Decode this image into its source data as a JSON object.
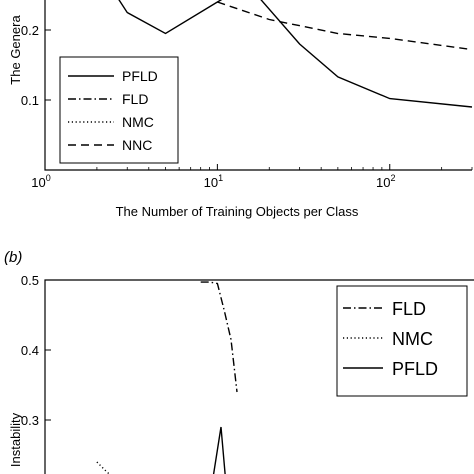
{
  "chart_data": [
    {
      "panel": "",
      "type": "line",
      "xscale": "log",
      "xlim": [
        1,
        300
      ],
      "ylim": [
        0.0,
        0.3
      ],
      "xlabel": "The Number of Training Objects per Class",
      "ylabel": "The Genera",
      "xticks": [
        1,
        10,
        100
      ],
      "xtick_labels": [
        {
          "base": "10",
          "exp": "0"
        },
        {
          "base": "10",
          "exp": "1"
        },
        {
          "base": "10",
          "exp": "2"
        }
      ],
      "yticks": [
        0.1,
        0.2
      ],
      "ytick_labels": [
        "0.1",
        "0.2"
      ],
      "legend": {
        "position": "lower-left"
      },
      "series": [
        {
          "name": "PFLD",
          "style": "solid",
          "x": [
            2.5,
            3,
            5,
            10,
            15,
            30,
            50,
            100,
            300
          ],
          "y": [
            0.255,
            0.225,
            0.195,
            0.24,
            0.265,
            0.18,
            0.133,
            0.102,
            0.09
          ]
        },
        {
          "name": "FLD",
          "style": "dashdot",
          "x": [],
          "y": []
        },
        {
          "name": "NMC",
          "style": "dotted",
          "x": [],
          "y": []
        },
        {
          "name": "NNC",
          "style": "dashed",
          "x": [
            10,
            20,
            50,
            100,
            300
          ],
          "y": [
            0.24,
            0.215,
            0.195,
            0.188,
            0.172
          ]
        }
      ]
    },
    {
      "panel": "(b)",
      "type": "line",
      "ylim": [
        0.2,
        0.5
      ],
      "ylabel": "Instability",
      "yticks": [
        0.3,
        0.4,
        0.5
      ],
      "ytick_labels": [
        "0.3",
        "0.4",
        "0.5"
      ],
      "legend": {
        "position": "top-right"
      },
      "series": [
        {
          "name": "FLD",
          "style": "dashdot",
          "x": [
            8,
            9,
            10,
            11,
            12,
            13
          ],
          "y": [
            0.497,
            0.497,
            0.495,
            0.455,
            0.415,
            0.34
          ]
        },
        {
          "name": "NMC",
          "style": "dotted",
          "x": [
            2,
            2.3,
            2.8
          ],
          "y": [
            0.24,
            0.225,
            0.21
          ]
        },
        {
          "name": "PFLD",
          "style": "solid",
          "x": [
            9.2,
            10.5,
            11.3
          ],
          "y": [
            0.2,
            0.29,
            0.2
          ]
        }
      ]
    }
  ]
}
